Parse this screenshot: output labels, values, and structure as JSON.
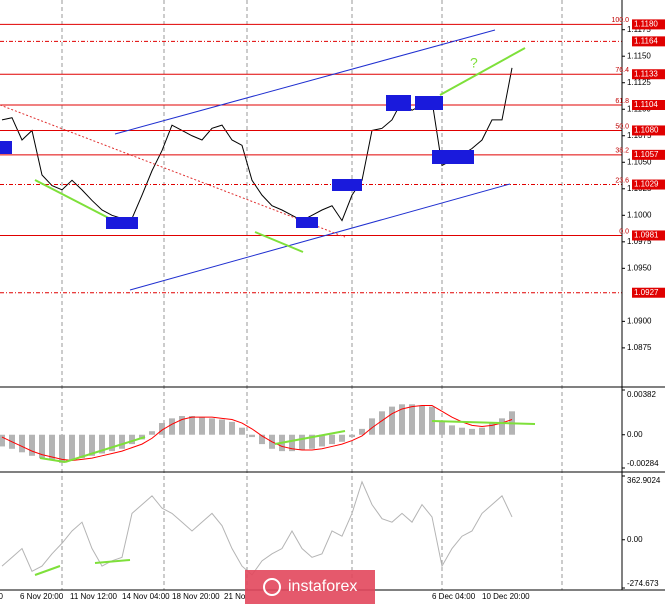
{
  "chart_data": [
    {
      "type": "line",
      "color": "#000000",
      "values": [
        1.109,
        1.1092,
        1.1071,
        1.108,
        1.1038,
        1.1028,
        1.1024,
        1.1033,
        1.1024,
        1.1014,
        1.1005,
        1.1,
        1.0997,
        1.0997,
        1.1019,
        1.1042,
        1.1061,
        1.1085,
        1.108,
        1.1075,
        1.1071,
        1.1082,
        1.1085,
        1.1071,
        1.1066,
        1.1033,
        1.1019,
        1.1009,
        1.1005,
        1.1,
        1.0995,
        1.1,
        1.1005,
        1.1009,
        1.0995,
        1.1019,
        1.1033,
        1.108,
        1.1082,
        1.109,
        1.1108,
        1.1099,
        1.1104,
        1.1108,
        1.1047,
        1.1052,
        1.1057,
        1.1063,
        1.1071,
        1.109,
        1.109,
        1.1139
      ],
      "ylim": [
        1.084,
        1.1203
      ],
      "yticks": [
        1.1175,
        {
          "value": 1.115,
          "label": "1.1150"
        },
        1.1125,
        {
          "value": 1.11,
          "label": "1.1100"
        },
        1.1075,
        {
          "value": 1.105,
          "label": "1.1050"
        },
        1.1025,
        {
          "value": 1.1,
          "label": "1.1000"
        },
        1.0975,
        {
          "value": 1.095,
          "label": "1.0950"
        },
        {
          "value": 1.09,
          "label": "1.0900"
        },
        1.0875
      ],
      "levels": [
        {
          "value": 1.118,
          "label": "1.1180",
          "fib": "100.0",
          "color": "#e00000"
        },
        {
          "value": 1.1164,
          "label": "1.1164",
          "color": "#e00000",
          "dashed": true
        },
        {
          "value": 1.1133,
          "label": "1.1133",
          "fib": "76.4",
          "color": "#e00000"
        },
        {
          "value": 1.1104,
          "label": "1.1104",
          "fib": "61.8",
          "color": "#e00000"
        },
        {
          "value": 1.108,
          "label": "1.1080",
          "fib": "50.0",
          "color": "#e00000"
        },
        {
          "value": 1.1057,
          "label": "1.1057",
          "fib": "38.2",
          "color": "#e00000"
        },
        {
          "value": 1.1029,
          "label": "1.1029",
          "fib": "23.6",
          "color": "#e00000",
          "dashed": true
        },
        {
          "value": 1.0981,
          "label": "1.0981",
          "fib": "0.0",
          "color": "#e00000"
        },
        {
          "value": 1.0927,
          "label": "1.0927",
          "color": "#e00000",
          "dashed": true
        }
      ],
      "annotation": "?",
      "x_axis_labels": [
        "00",
        "6 Nov 20:00",
        "11 Nov 12:00",
        "14 Nov 04:00",
        "18 Nov 20:00",
        "21 No",
        "6 Dec 04:00",
        "10 Dec 20:00"
      ],
      "watermark": "instaforex"
    },
    {
      "type": "bar",
      "series": [
        {
          "color": "#b4b4b4",
          "style": "bar",
          "values": [
            -0.001,
            -0.0012,
            -0.0015,
            -0.0018,
            -0.002,
            -0.0022,
            -0.0024,
            -0.0022,
            -0.002,
            -0.0018,
            -0.0016,
            -0.0014,
            -0.0012,
            -0.0008,
            -0.0004,
            0.0003,
            0.001,
            0.0014,
            0.0016,
            0.0016,
            0.0015,
            0.0014,
            0.0013,
            0.0011,
            0.0006,
            -0.0002,
            -0.0008,
            -0.0012,
            -0.0014,
            -0.0014,
            -0.0013,
            -0.0012,
            -0.001,
            -0.0008,
            -0.0006,
            -0.0002,
            0.0005,
            0.0014,
            0.002,
            0.0024,
            0.0026,
            0.0026,
            0.0025,
            0.0024,
            0.0012,
            0.0008,
            0.0006,
            0.0005,
            0.0006,
            0.001,
            0.0014,
            0.002
          ]
        },
        {
          "color": "#ff0000",
          "style": "line",
          "values": [
            -0.0002,
            -0.0006,
            -0.001,
            -0.0014,
            -0.0017,
            -0.0019,
            -0.0021,
            -0.0022,
            -0.0021,
            -0.002,
            -0.0018,
            -0.0016,
            -0.0014,
            -0.0011,
            -0.0008,
            -0.0003,
            0.0004,
            0.0009,
            0.0013,
            0.0015,
            0.0015,
            0.0015,
            0.0014,
            0.0013,
            0.001,
            0.0005,
            -0.0001,
            -0.0006,
            -0.001,
            -0.0012,
            -0.0013,
            -0.0013,
            -0.0012,
            -0.001,
            -0.0008,
            -0.0005,
            -0.0001,
            0.0006,
            0.0012,
            0.0018,
            0.0022,
            0.0024,
            0.0025,
            0.0025,
            0.002,
            0.0015,
            0.0011,
            0.0008,
            0.0007,
            0.0008,
            0.001,
            0.0013
          ]
        }
      ],
      "ylim": [
        -0.00284,
        0.00382
      ],
      "yticks": [
        0.00382,
        {
          "value": 0,
          "label": "0.00"
        },
        -0.00284
      ]
    },
    {
      "type": "line",
      "color": "#b4b4b4",
      "values": [
        -150,
        -100,
        -50,
        -180,
        -150,
        -80,
        -20,
        50,
        100,
        -50,
        -150,
        -120,
        -100,
        150,
        200,
        250,
        180,
        150,
        100,
        50,
        100,
        150,
        80,
        -50,
        -150,
        -200,
        -120,
        -80,
        -50,
        50,
        -50,
        -100,
        -80,
        50,
        20,
        150,
        330,
        200,
        120,
        100,
        150,
        100,
        200,
        130,
        -150,
        -50,
        20,
        50,
        150,
        200,
        250,
        130
      ],
      "ylim": [
        -274.673,
        362.9024
      ],
      "yticks": [
        362.9024,
        {
          "value": 0,
          "label": "0.00"
        },
        -274.673
      ]
    }
  ]
}
